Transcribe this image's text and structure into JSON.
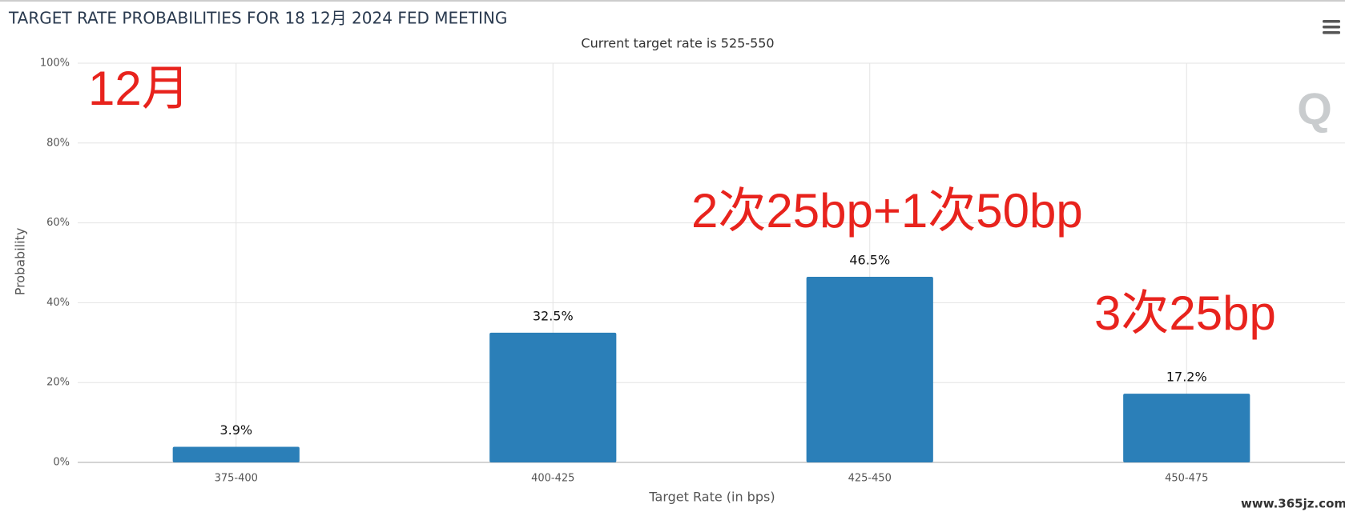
{
  "chart_data": {
    "type": "bar",
    "title": "TARGET RATE PROBABILITIES FOR 18 12月 2024 FED MEETING",
    "subtitle": "Current target rate is 525-550",
    "x_label": "Target Rate (in bps)",
    "y_label": "Probability",
    "categories": [
      "375-400",
      "400-425",
      "425-450",
      "450-475"
    ],
    "values": [
      3.9,
      32.5,
      46.5,
      17.2
    ],
    "value_labels": [
      "3.9%",
      "32.5%",
      "46.5%",
      "17.2%"
    ],
    "color": "#2b7fb8",
    "ylim": [
      0,
      100
    ],
    "yticks": [
      {
        "value": 0,
        "label": "0%"
      },
      {
        "value": 20,
        "label": "20%"
      },
      {
        "value": 40,
        "label": "40%"
      },
      {
        "value": 60,
        "label": "60%"
      },
      {
        "value": 80,
        "label": "80%"
      },
      {
        "value": 100,
        "label": "100%"
      }
    ],
    "grid": true,
    "annotations": [
      "12月",
      "2次25bp+1次50bp",
      "3次25bp"
    ],
    "watermark": "www.365jz.com"
  }
}
